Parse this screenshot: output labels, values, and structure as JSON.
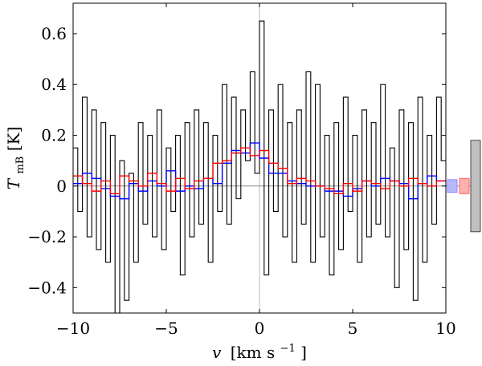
{
  "chart_data": {
    "type": "line",
    "xlabel": {
      "var": "v",
      "unit_pre": "[km s",
      "unit_sup": "−1",
      "unit_post": "]"
    },
    "ylabel": {
      "var": "T",
      "sub": "mB",
      "unit": " [K]"
    },
    "xlim": [
      -10,
      10
    ],
    "ylim": [
      -0.5,
      0.72
    ],
    "xticks": [
      -10,
      -5,
      0,
      5,
      10
    ],
    "xtick_labels": [
      "−10",
      "−5",
      "0",
      "5",
      "10"
    ],
    "yticks": [
      -0.4,
      -0.2,
      0,
      0.2,
      0.4,
      0.6
    ],
    "ytick_labels": [
      "−0.4",
      "−0.2",
      "0",
      "0.2",
      "0.4",
      "0.6"
    ],
    "grid": false,
    "reference_lines": {
      "x": 0,
      "y": 0
    },
    "series": [
      {
        "style": "step",
        "color": "#000000",
        "x": [
          -10.0,
          -9.75,
          -9.5,
          -9.25,
          -9.0,
          -8.75,
          -8.5,
          -8.25,
          -8.0,
          -7.75,
          -7.5,
          -7.25,
          -7.0,
          -6.75,
          -6.5,
          -6.25,
          -6.0,
          -5.75,
          -5.5,
          -5.25,
          -5.0,
          -4.75,
          -4.5,
          -4.25,
          -4.0,
          -3.75,
          -3.5,
          -3.25,
          -3.0,
          -2.75,
          -2.5,
          -2.25,
          -2.0,
          -1.75,
          -1.5,
          -1.25,
          -1.0,
          -0.75,
          -0.5,
          -0.25,
          0.0,
          0.25,
          0.5,
          0.75,
          1.0,
          1.25,
          1.5,
          1.75,
          2.0,
          2.25,
          2.5,
          2.75,
          3.0,
          3.25,
          3.5,
          3.75,
          4.0,
          4.25,
          4.5,
          4.75,
          5.0,
          5.25,
          5.5,
          5.75,
          6.0,
          6.25,
          6.5,
          6.75,
          7.0,
          7.25,
          7.5,
          7.75,
          8.0,
          8.25,
          8.5,
          8.75,
          9.0,
          9.25,
          9.5,
          9.75
        ],
        "values": [
          0.15,
          -0.1,
          0.35,
          -0.2,
          0.3,
          -0.25,
          0.25,
          -0.3,
          0.2,
          -0.5,
          0.1,
          -0.45,
          0.05,
          -0.3,
          0.25,
          -0.15,
          0.2,
          -0.2,
          0.3,
          -0.25,
          0.15,
          -0.1,
          0.2,
          -0.35,
          0.25,
          -0.2,
          0.3,
          -0.15,
          0.25,
          -0.3,
          0.2,
          -0.1,
          0.4,
          -0.15,
          0.35,
          -0.05,
          0.3,
          0.1,
          0.45,
          0.05,
          0.65,
          -0.35,
          0.3,
          -0.1,
          0.4,
          -0.2,
          0.25,
          -0.3,
          0.3,
          -0.15,
          0.45,
          -0.3,
          0.4,
          -0.2,
          0.2,
          -0.35,
          0.25,
          -0.25,
          0.35,
          -0.1,
          0.2,
          -0.3,
          0.3,
          -0.2,
          0.25,
          -0.15,
          0.4,
          -0.2,
          0.15,
          -0.4,
          0.3,
          -0.25,
          0.25,
          -0.45,
          0.35,
          -0.3,
          0.2,
          -0.15,
          0.35,
          0.1
        ]
      },
      {
        "style": "step",
        "color": "#0000ff",
        "x": [
          -10.0,
          -9.5,
          -9.0,
          -8.5,
          -8.0,
          -7.5,
          -7.0,
          -6.5,
          -6.0,
          -5.5,
          -5.0,
          -4.5,
          -4.0,
          -3.5,
          -3.0,
          -2.5,
          -2.0,
          -1.5,
          -1.0,
          -0.5,
          0.0,
          0.5,
          1.0,
          1.5,
          2.0,
          2.5,
          3.0,
          3.5,
          4.0,
          4.5,
          5.0,
          5.5,
          6.0,
          6.5,
          7.0,
          7.5,
          8.0,
          8.5,
          9.0,
          9.5
        ],
        "values": [
          0.01,
          0.05,
          0.03,
          -0.01,
          -0.04,
          -0.05,
          0.01,
          -0.02,
          0.02,
          0.0,
          0.06,
          -0.02,
          0.0,
          -0.01,
          0.03,
          0.01,
          0.09,
          0.14,
          0.13,
          0.17,
          0.11,
          0.05,
          0.05,
          0.02,
          0.01,
          0.0,
          0.0,
          -0.02,
          -0.02,
          -0.04,
          -0.01,
          0.02,
          0.0,
          0.03,
          0.02,
          0.01,
          -0.05,
          0.01,
          0.04,
          0.02
        ]
      },
      {
        "style": "step",
        "color": "#ff0000",
        "x": [
          -10.0,
          -9.5,
          -9.0,
          -8.5,
          -8.0,
          -7.5,
          -7.0,
          -6.5,
          -6.0,
          -5.5,
          -5.0,
          -4.5,
          -4.0,
          -3.5,
          -3.0,
          -2.5,
          -2.0,
          -1.5,
          -1.0,
          -0.5,
          0.0,
          0.5,
          1.0,
          1.5,
          2.0,
          2.5,
          3.0,
          3.5,
          4.0,
          4.5,
          5.0,
          5.5,
          6.0,
          6.5,
          7.0,
          7.5,
          8.0,
          8.5,
          9.0,
          9.5
        ],
        "values": [
          0.04,
          0.01,
          -0.02,
          0.02,
          -0.03,
          0.04,
          0.02,
          0.0,
          0.05,
          0.01,
          -0.02,
          0.03,
          -0.01,
          0.02,
          0.03,
          0.09,
          0.1,
          0.13,
          0.15,
          0.12,
          0.14,
          0.09,
          0.07,
          0.01,
          0.03,
          0.02,
          0.0,
          -0.01,
          -0.03,
          0.01,
          -0.02,
          0.02,
          0.01,
          -0.01,
          0.02,
          0.0,
          0.03,
          0.01,
          0.0,
          0.02
        ]
      }
    ],
    "noise_boxes": [
      {
        "color": "#8888ff",
        "fill": "#b8b8ff",
        "ymin": -0.025,
        "ymax": 0.025
      },
      {
        "color": "#ff6666",
        "fill": "#ffb0b0",
        "ymin": -0.03,
        "ymax": 0.03
      },
      {
        "color": "#444444",
        "fill": "#c0c0c0",
        "ymin": -0.18,
        "ymax": 0.18
      }
    ]
  }
}
